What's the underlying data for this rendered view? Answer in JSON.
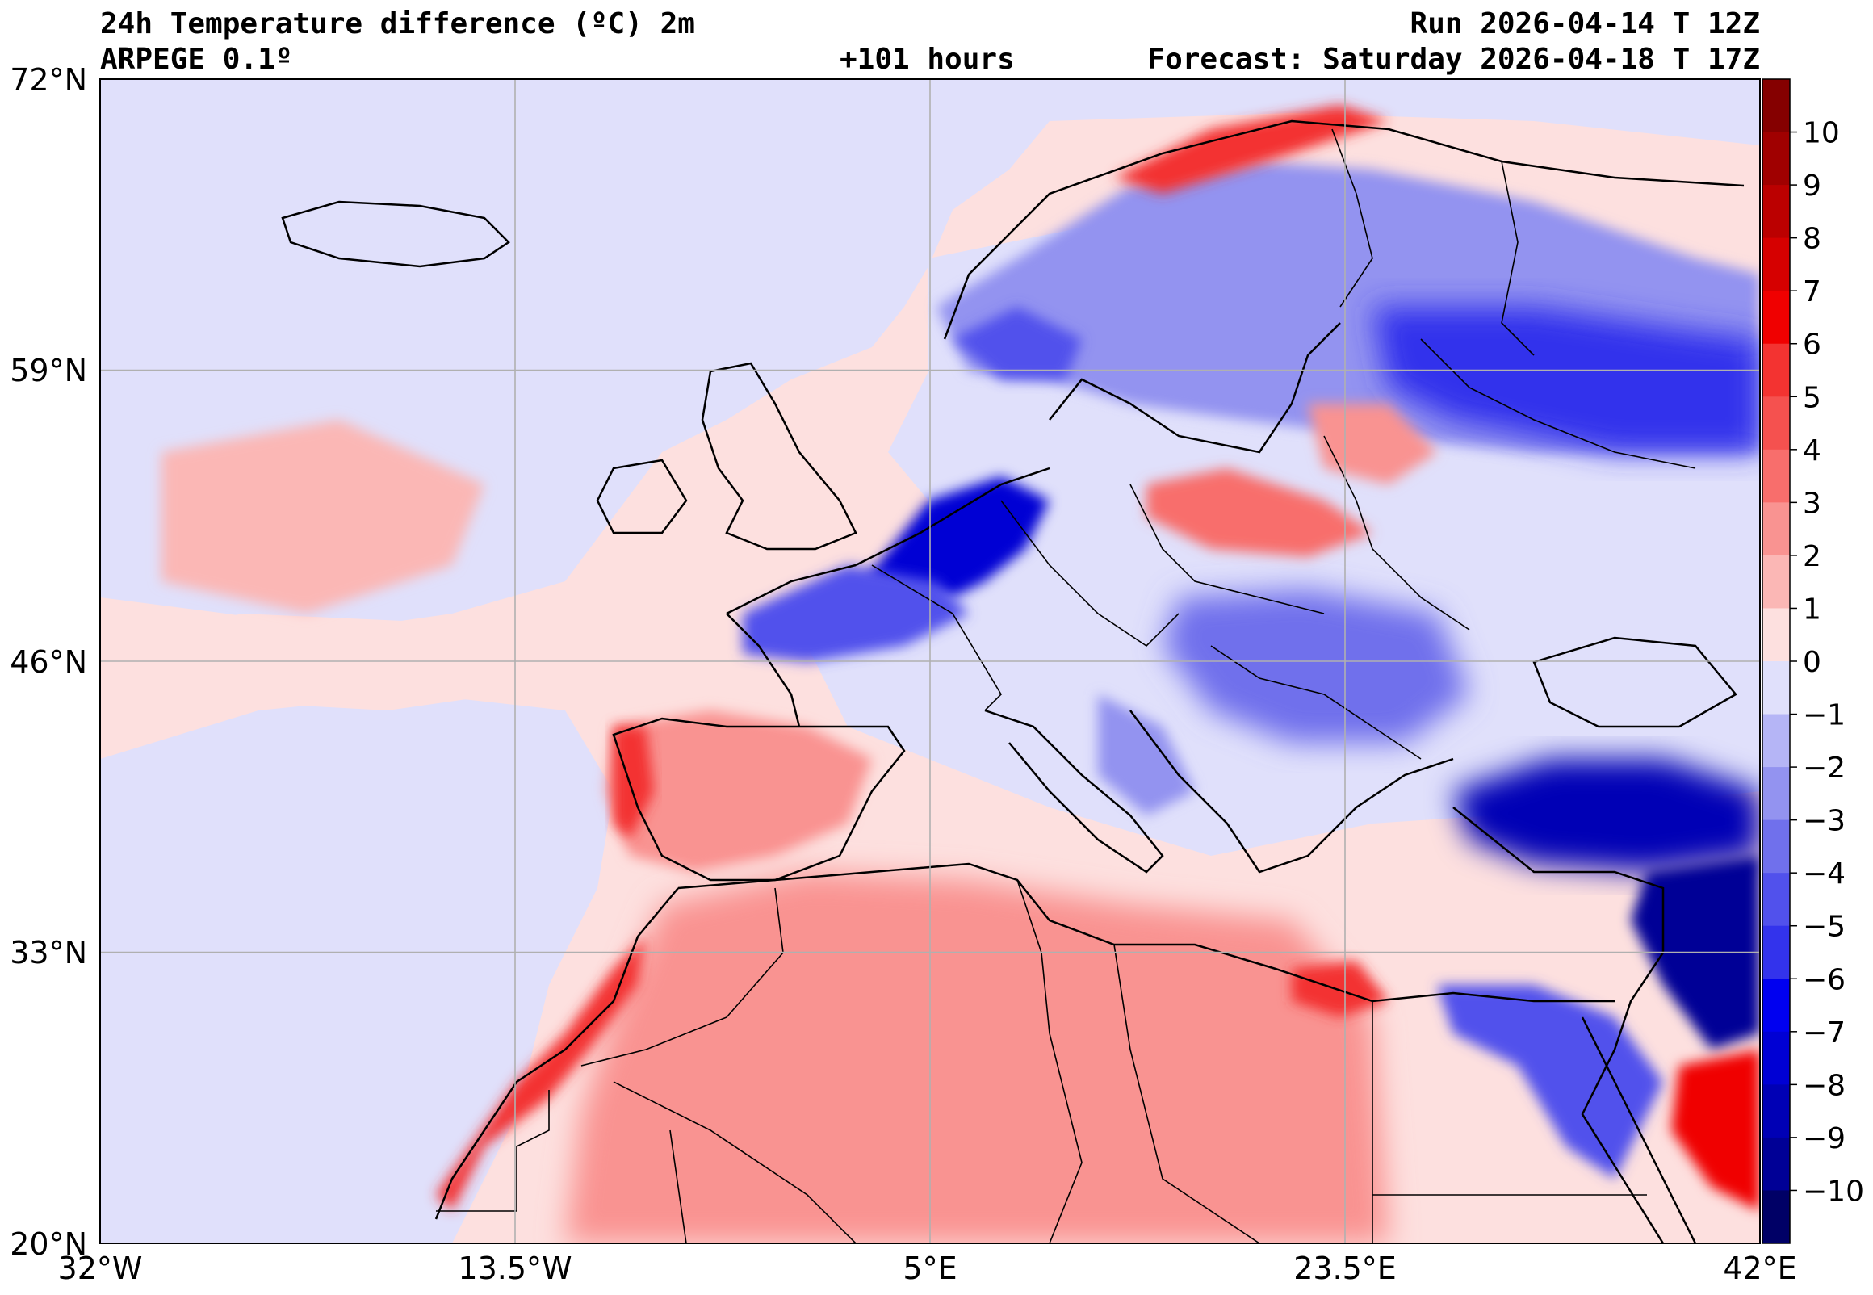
{
  "header": {
    "title": "24h Temperature difference (ºC) 2m",
    "run": "Run 2026-04-14 T 12Z",
    "model": "ARPEGE 0.1º",
    "lead": "+101 hours",
    "forecast": "Forecast: Saturday 2026-04-18 T 17Z"
  },
  "map": {
    "lon_range": [
      -32,
      42
    ],
    "lat_range": [
      20,
      72
    ],
    "lat_ticks": [
      "72°N",
      "59°N",
      "46°N",
      "33°N",
      "20°N"
    ],
    "lon_ticks": [
      "32°W",
      "13.5°W",
      "5°E",
      "23.5°E",
      "42°E"
    ],
    "projection": "Plate Carree"
  },
  "colorbar": {
    "min": -11,
    "max": 11,
    "labels": [
      "10",
      "9",
      "8",
      "7",
      "6",
      "5",
      "4",
      "3",
      "2",
      "1",
      "0",
      "−1",
      "−2",
      "−3",
      "−4",
      "−5",
      "−6",
      "−7",
      "−8",
      "−9",
      "−10"
    ],
    "colors": {
      "pos": [
        "#fde0df",
        "#fbb7b5",
        "#f99391",
        "#f86e6c",
        "#f5514f",
        "#f33331",
        "#f00000",
        "#d60000",
        "#bb0000",
        "#a00000",
        "#850000"
      ],
      "neg": [
        "#e0e0fb",
        "#b5b5f6",
        "#9393f0",
        "#7070ec",
        "#5151ec",
        "#3333ec",
        "#0000f0",
        "#0000d4",
        "#0000b5",
        "#000096",
        "#000066"
      ]
    }
  },
  "colors": {
    "land_line": "#000000",
    "grid": "#b0b0b0"
  }
}
